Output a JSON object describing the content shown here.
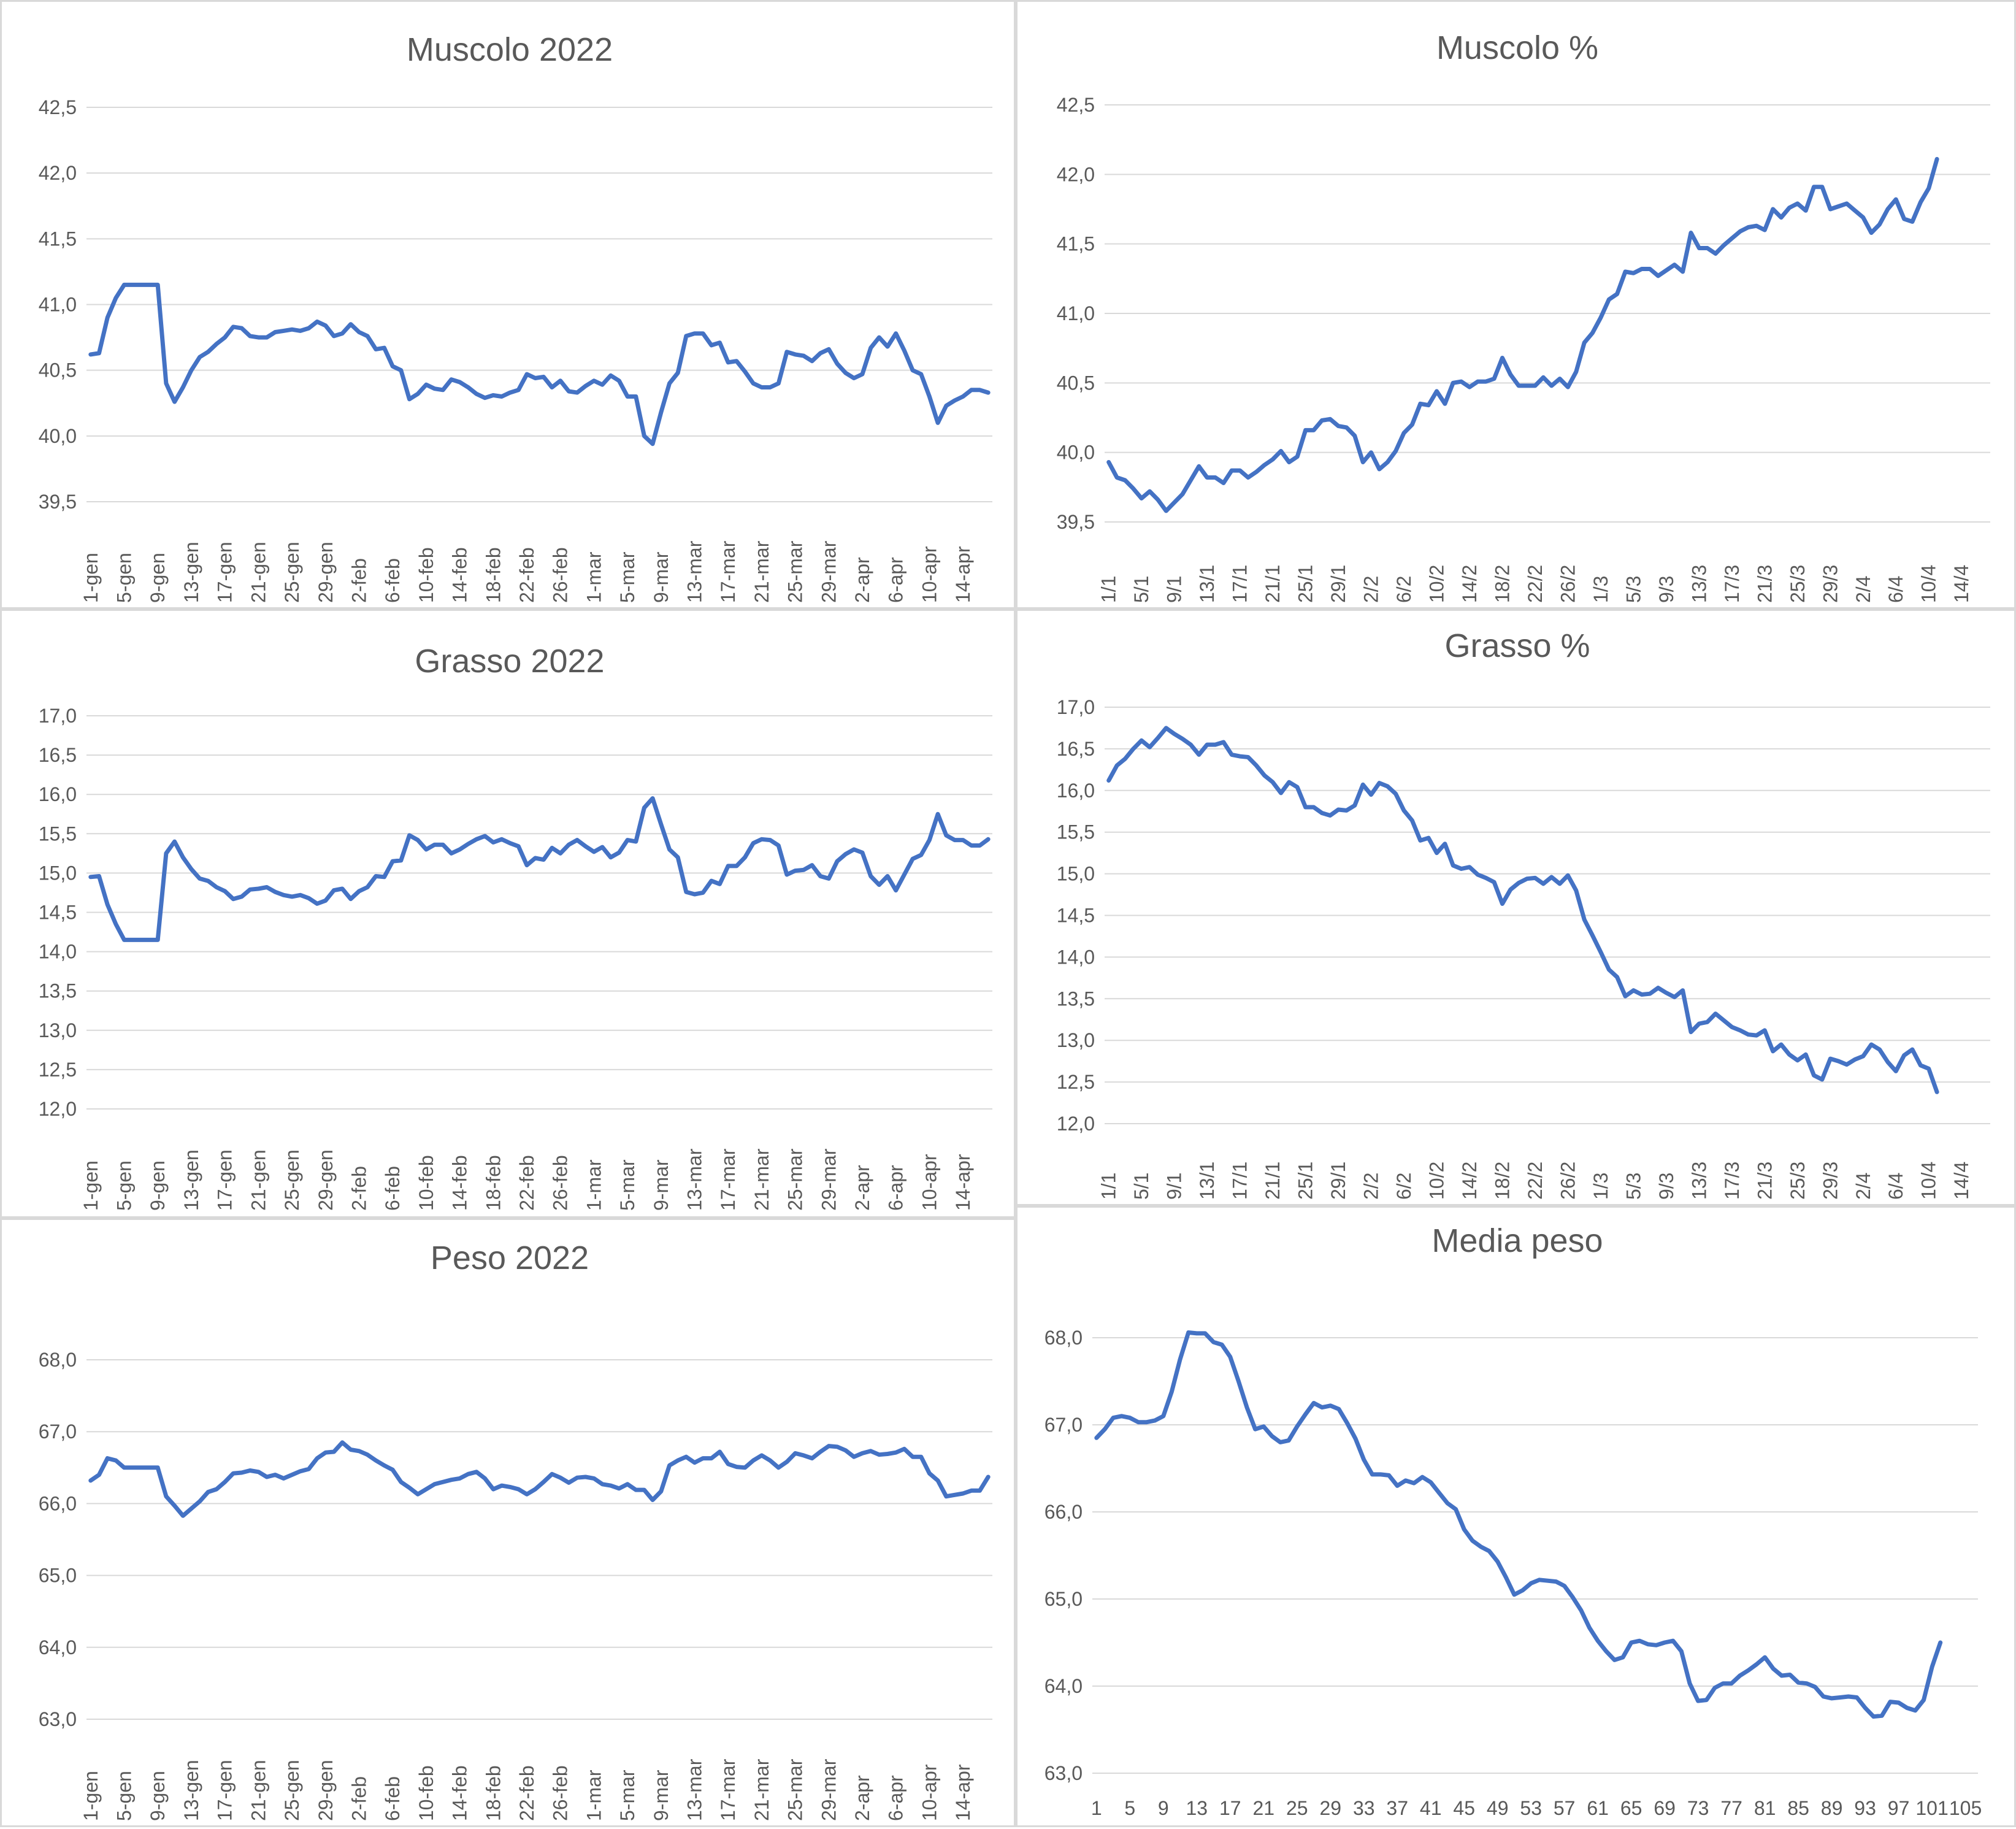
{
  "chart_data": [
    {
      "type": "line",
      "title": "Muscolo 2022",
      "ylim": [
        39.5,
        42.5
      ],
      "yticks": [
        "39,5",
        "40,0",
        "40,5",
        "41,0",
        "41,5",
        "42,0",
        "42,5"
      ],
      "xticks": [
        "1-gen",
        "5-gen",
        "9-gen",
        "13-gen",
        "17-gen",
        "21-gen",
        "25-gen",
        "29-gen",
        "2-feb",
        "6-feb",
        "10-feb",
        "14-feb",
        "18-feb",
        "22-feb",
        "26-feb",
        "1-mar",
        "5-mar",
        "9-mar",
        "13-mar",
        "17-mar",
        "21-mar",
        "25-mar",
        "29-mar",
        "2-apr",
        "6-apr",
        "10-apr",
        "14-apr"
      ],
      "xcount": 108,
      "series": [
        {
          "values": [
            40.62,
            40.63,
            40.9,
            41.05,
            41.15,
            41.15,
            41.15,
            41.15,
            41.15,
            40.4,
            40.26,
            40.37,
            40.5,
            40.6,
            40.64,
            40.7,
            40.75,
            40.83,
            40.82,
            40.76,
            40.75,
            40.75,
            40.79,
            40.8,
            40.81,
            40.8,
            40.82,
            40.87,
            40.84,
            40.76,
            40.78,
            40.85,
            40.79,
            40.76,
            40.66,
            40.67,
            40.53,
            40.5,
            40.28,
            40.32,
            40.39,
            40.36,
            40.35,
            40.43,
            40.41,
            40.37,
            40.32,
            40.29,
            40.31,
            40.3,
            40.33,
            40.35,
            40.47,
            40.44,
            40.45,
            40.37,
            40.42,
            40.34,
            40.33,
            40.38,
            40.42,
            40.39,
            40.46,
            40.42,
            40.3,
            40.3,
            40.0,
            39.94,
            40.18,
            40.4,
            40.48,
            40.76,
            40.78,
            40.78,
            40.69,
            40.71,
            40.56,
            40.57,
            40.49,
            40.4,
            40.37,
            40.37,
            40.4,
            40.64,
            40.62,
            40.61,
            40.57,
            40.63,
            40.66,
            40.55,
            40.48,
            40.44,
            40.47,
            40.67,
            40.75,
            40.68,
            40.78,
            40.65,
            40.5,
            40.47,
            40.3,
            40.1,
            40.23,
            40.27,
            40.3,
            40.35,
            40.35,
            40.33
          ]
        }
      ]
    },
    {
      "type": "line",
      "title": "Muscolo %",
      "ylim": [
        39.5,
        42.5
      ],
      "yticks": [
        "39,5",
        "40,0",
        "40,5",
        "41,0",
        "41,5",
        "42,0",
        "42,5"
      ],
      "xticks": [
        "1/1",
        "5/1",
        "9/1",
        "13/1",
        "17/1",
        "21/1",
        "25/1",
        "29/1",
        "2/2",
        "6/2",
        "10/2",
        "14/2",
        "18/2",
        "22/2",
        "26/2",
        "1/3",
        "5/3",
        "9/3",
        "13/3",
        "17/3",
        "21/3",
        "25/3",
        "29/3",
        "2/4",
        "6/4",
        "10/4",
        "14/4"
      ],
      "xcount": 108,
      "series": [
        {
          "values": [
            39.93,
            39.82,
            39.8,
            39.74,
            39.67,
            39.72,
            39.66,
            39.58,
            39.64,
            39.7,
            39.8,
            39.9,
            39.82,
            39.82,
            39.78,
            39.87,
            39.87,
            39.82,
            39.86,
            39.91,
            39.95,
            40.01,
            39.93,
            39.97,
            40.16,
            40.16,
            40.23,
            40.24,
            40.19,
            40.18,
            40.12,
            39.93,
            40.0,
            39.88,
            39.93,
            40.01,
            40.14,
            40.2,
            40.35,
            40.34,
            40.44,
            40.35,
            40.5,
            40.51,
            40.47,
            40.51,
            40.51,
            40.53,
            40.68,
            40.56,
            40.48,
            40.48,
            40.48,
            40.54,
            40.48,
            40.53,
            40.47,
            40.58,
            40.79,
            40.86,
            40.97,
            41.1,
            41.14,
            41.3,
            41.29,
            41.32,
            41.32,
            41.27,
            41.31,
            41.35,
            41.3,
            41.58,
            41.47,
            41.47,
            41.43,
            41.49,
            41.54,
            41.59,
            41.62,
            41.63,
            41.6,
            41.75,
            41.69,
            41.76,
            41.79,
            41.74,
            41.91,
            41.91,
            41.75,
            41.77,
            41.79,
            41.74,
            41.69,
            41.58,
            41.64,
            41.75,
            41.82,
            41.68,
            41.66,
            41.8,
            41.9,
            42.11
          ]
        }
      ]
    },
    {
      "type": "line",
      "title": "Grasso 2022",
      "ylim": [
        12.0,
        17.0
      ],
      "yticks": [
        "12,0",
        "12,5",
        "13,0",
        "13,5",
        "14,0",
        "14,5",
        "15,0",
        "15,5",
        "16,0",
        "16,5",
        "17,0"
      ],
      "xticks": [
        "1-gen",
        "5-gen",
        "9-gen",
        "13-gen",
        "17-gen",
        "21-gen",
        "25-gen",
        "29-gen",
        "2-feb",
        "6-feb",
        "10-feb",
        "14-feb",
        "18-feb",
        "22-feb",
        "26-feb",
        "1-mar",
        "5-mar",
        "9-mar",
        "13-mar",
        "17-mar",
        "21-mar",
        "25-mar",
        "29-mar",
        "2-apr",
        "6-apr",
        "10-apr",
        "14-apr"
      ],
      "xcount": 108,
      "series": [
        {
          "values": [
            14.95,
            14.96,
            14.6,
            14.35,
            14.15,
            14.15,
            14.15,
            14.15,
            14.15,
            15.25,
            15.4,
            15.2,
            15.05,
            14.93,
            14.9,
            14.82,
            14.77,
            14.67,
            14.7,
            14.79,
            14.8,
            14.82,
            14.76,
            14.72,
            14.7,
            14.72,
            14.68,
            14.61,
            14.65,
            14.78,
            14.8,
            14.67,
            14.77,
            14.82,
            14.96,
            14.95,
            15.15,
            15.16,
            15.48,
            15.42,
            15.3,
            15.36,
            15.36,
            15.25,
            15.3,
            15.37,
            15.43,
            15.47,
            15.39,
            15.43,
            15.38,
            15.34,
            15.1,
            15.19,
            15.17,
            15.32,
            15.25,
            15.36,
            15.42,
            15.34,
            15.27,
            15.33,
            15.2,
            15.26,
            15.42,
            15.4,
            15.83,
            15.95,
            15.62,
            15.3,
            15.2,
            14.76,
            14.73,
            14.75,
            14.9,
            14.86,
            15.09,
            15.09,
            15.2,
            15.38,
            15.43,
            15.42,
            15.35,
            14.98,
            15.03,
            15.04,
            15.1,
            14.96,
            14.93,
            15.15,
            15.24,
            15.3,
            15.26,
            14.96,
            14.85,
            14.96,
            14.78,
            14.98,
            15.18,
            15.23,
            15.42,
            15.75,
            15.48,
            15.42,
            15.42,
            15.35,
            15.35,
            15.43
          ]
        }
      ]
    },
    {
      "type": "line",
      "title": "Grasso %",
      "ylim": [
        12.0,
        17.0
      ],
      "yticks": [
        "12,0",
        "12,5",
        "13,0",
        "13,5",
        "14,0",
        "14,5",
        "15,0",
        "15,5",
        "16,0",
        "16,5",
        "17,0"
      ],
      "xticks": [
        "1/1",
        "5/1",
        "9/1",
        "13/1",
        "17/1",
        "21/1",
        "25/1",
        "29/1",
        "2/2",
        "6/2",
        "10/2",
        "14/2",
        "18/2",
        "22/2",
        "26/2",
        "1/3",
        "5/3",
        "9/3",
        "13/3",
        "17/3",
        "21/3",
        "25/3",
        "29/3",
        "2/4",
        "6/4",
        "10/4",
        "14/4"
      ],
      "xcount": 108,
      "series": [
        {
          "values": [
            16.12,
            16.3,
            16.38,
            16.5,
            16.6,
            16.52,
            16.63,
            16.75,
            16.68,
            16.62,
            16.55,
            16.43,
            16.55,
            16.55,
            16.58,
            16.43,
            16.41,
            16.4,
            16.3,
            16.18,
            16.1,
            15.97,
            16.1,
            16.04,
            15.8,
            15.8,
            15.73,
            15.7,
            15.77,
            15.76,
            15.82,
            16.07,
            15.95,
            16.09,
            16.05,
            15.96,
            15.76,
            15.64,
            15.4,
            15.43,
            15.25,
            15.36,
            15.1,
            15.06,
            15.08,
            14.99,
            14.95,
            14.9,
            14.64,
            14.81,
            14.89,
            14.94,
            14.95,
            14.88,
            14.96,
            14.88,
            14.98,
            14.8,
            14.45,
            14.26,
            14.06,
            13.85,
            13.76,
            13.53,
            13.6,
            13.55,
            13.56,
            13.63,
            13.57,
            13.52,
            13.6,
            13.1,
            13.2,
            13.22,
            13.32,
            13.24,
            13.16,
            13.12,
            13.07,
            13.06,
            13.12,
            12.87,
            12.95,
            12.83,
            12.76,
            12.83,
            12.58,
            12.53,
            12.78,
            12.75,
            12.71,
            12.77,
            12.81,
            12.95,
            12.89,
            12.74,
            12.63,
            12.82,
            12.89,
            12.7,
            12.66,
            12.38
          ]
        }
      ]
    },
    {
      "type": "line",
      "title": "Peso 2022",
      "ylim": [
        63.0,
        68.0
      ],
      "yticks": [
        "63,0",
        "64,0",
        "65,0",
        "66,0",
        "67,0",
        "68,0"
      ],
      "xticks": [
        "1-gen",
        "5-gen",
        "9-gen",
        "13-gen",
        "17-gen",
        "21-gen",
        "25-gen",
        "29-gen",
        "2-feb",
        "6-feb",
        "10-feb",
        "14-feb",
        "18-feb",
        "22-feb",
        "26-feb",
        "1-mar",
        "5-mar",
        "9-mar",
        "13-mar",
        "17-mar",
        "21-mar",
        "25-mar",
        "29-mar",
        "2-apr",
        "6-apr",
        "10-apr",
        "14-apr"
      ],
      "xcount": 108,
      "series": [
        {
          "values": [
            66.32,
            66.4,
            66.63,
            66.6,
            66.5,
            66.5,
            66.5,
            66.5,
            66.5,
            66.1,
            65.97,
            65.83,
            65.93,
            66.03,
            66.16,
            66.2,
            66.3,
            66.42,
            66.43,
            66.46,
            66.44,
            66.37,
            66.4,
            66.35,
            66.4,
            66.45,
            66.48,
            66.63,
            66.71,
            66.72,
            66.85,
            66.75,
            66.73,
            66.68,
            66.6,
            66.53,
            66.47,
            66.3,
            66.22,
            66.13,
            66.2,
            66.27,
            66.3,
            66.33,
            66.35,
            66.41,
            66.44,
            66.35,
            66.2,
            66.25,
            66.23,
            66.2,
            66.13,
            66.2,
            66.3,
            66.41,
            66.36,
            66.29,
            66.36,
            66.37,
            66.35,
            66.27,
            66.25,
            66.21,
            66.27,
            66.19,
            66.19,
            66.05,
            66.17,
            66.53,
            66.6,
            66.65,
            66.57,
            66.63,
            66.63,
            66.72,
            66.55,
            66.51,
            66.5,
            66.6,
            66.67,
            66.6,
            66.5,
            66.58,
            66.7,
            66.67,
            66.63,
            66.72,
            66.8,
            66.79,
            66.74,
            66.65,
            66.7,
            66.73,
            66.68,
            66.69,
            66.71,
            66.76,
            66.65,
            66.65,
            66.42,
            66.32,
            66.1,
            66.12,
            66.14,
            66.18,
            66.18,
            66.37
          ]
        }
      ]
    },
    {
      "type": "line",
      "title": "Media peso",
      "ylim": [
        63.0,
        68.0
      ],
      "yticks": [
        "63,0",
        "64,0",
        "65,0",
        "66,0",
        "67,0",
        "68,0"
      ],
      "xticks": [
        "1",
        "5",
        "9",
        "13",
        "17",
        "21",
        "25",
        "29",
        "33",
        "37",
        "41",
        "45",
        "49",
        "53",
        "57",
        "61",
        "65",
        "69",
        "73",
        "77",
        "81",
        "85",
        "89",
        "93",
        "97",
        "101",
        "105"
      ],
      "xcount": 106,
      "series": [
        {
          "values": [
            66.85,
            66.95,
            67.08,
            67.1,
            67.08,
            67.03,
            67.03,
            67.05,
            67.1,
            67.38,
            67.75,
            68.06,
            68.05,
            68.05,
            67.95,
            67.92,
            67.78,
            67.5,
            67.2,
            66.95,
            66.98,
            66.87,
            66.8,
            66.82,
            66.98,
            67.12,
            67.25,
            67.2,
            67.22,
            67.18,
            67.02,
            66.84,
            66.6,
            66.43,
            66.43,
            66.42,
            66.3,
            66.36,
            66.33,
            66.4,
            66.34,
            66.22,
            66.1,
            66.03,
            65.8,
            65.67,
            65.6,
            65.55,
            65.43,
            65.25,
            65.05,
            65.1,
            65.18,
            65.22,
            65.21,
            65.2,
            65.15,
            65.02,
            64.87,
            64.67,
            64.52,
            64.4,
            64.3,
            64.33,
            64.5,
            64.52,
            64.48,
            64.47,
            64.5,
            64.52,
            64.4,
            64.03,
            63.83,
            63.84,
            63.98,
            64.03,
            64.03,
            64.12,
            64.18,
            64.25,
            64.33,
            64.2,
            64.12,
            64.13,
            64.04,
            64.03,
            63.99,
            63.88,
            63.86,
            63.87,
            63.88,
            63.87,
            63.75,
            63.65,
            63.66,
            63.82,
            63.81,
            63.75,
            63.72,
            63.84,
            64.22,
            64.5
          ]
        }
      ]
    }
  ]
}
